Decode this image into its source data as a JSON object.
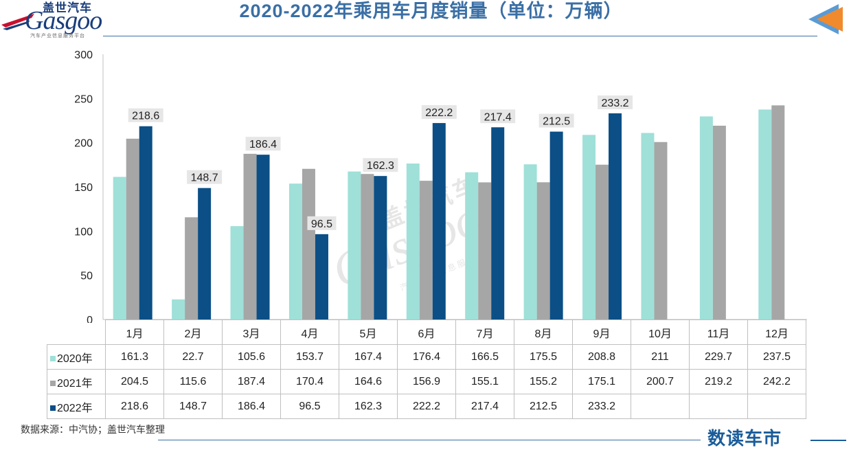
{
  "header": {
    "logo_cn": "盖世汽车",
    "logo_en": "Gasgoo",
    "logo_sub": "汽车产业信息服务平台",
    "title": "2020-2022年乘用车月度销量（单位：万辆）"
  },
  "footer": {
    "source": "数据来源：中汽协；盖世汽车整理",
    "brand": "数读车市"
  },
  "watermark": {
    "cn": "盖世汽车",
    "en": "Gasgoo",
    "sub": "汽车产业信息服务平台"
  },
  "colors": {
    "s2020": "#9fe0d8",
    "s2021": "#a6a6a6",
    "s2022": "#0b4f86",
    "axis": "#bfbfbf",
    "title": "#3a6fa5"
  },
  "chart_data": {
    "type": "bar",
    "title": "2020-2022年乘用车月度销量（单位：万辆）",
    "categories": [
      "1月",
      "2月",
      "3月",
      "4月",
      "5月",
      "6月",
      "7月",
      "8月",
      "9月",
      "10月",
      "11月",
      "12月"
    ],
    "series": [
      {
        "name": "2020年",
        "values": [
          161.3,
          22.7,
          105.6,
          153.7,
          167.4,
          176.4,
          166.5,
          175.5,
          208.8,
          211,
          229.7,
          237.5
        ]
      },
      {
        "name": "2021年",
        "values": [
          204.5,
          115.6,
          187.4,
          170.4,
          164.6,
          156.9,
          155.1,
          155.2,
          175.1,
          200.7,
          219.2,
          242.2
        ]
      },
      {
        "name": "2022年",
        "values": [
          218.6,
          148.7,
          186.4,
          96.5,
          162.3,
          222.2,
          217.4,
          212.5,
          233.2,
          null,
          null,
          null
        ]
      }
    ],
    "data_labels_series": "2022年",
    "yticks": [
      0,
      50,
      100,
      150,
      200,
      250,
      300
    ],
    "ylim": [
      0,
      300
    ],
    "xlabel": "",
    "ylabel": "",
    "grid": false,
    "legend": "data-table"
  }
}
